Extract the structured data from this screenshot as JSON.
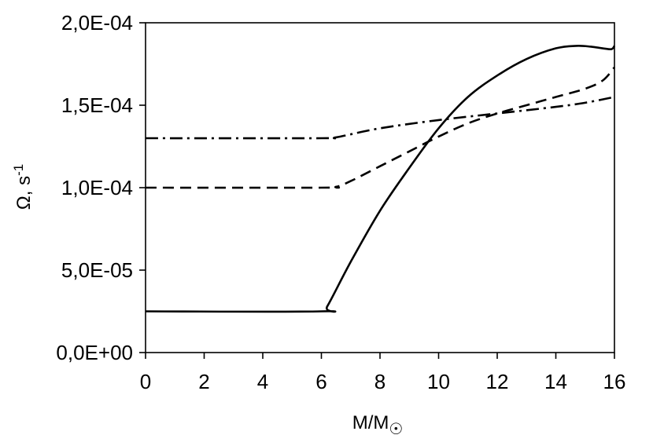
{
  "chart_data": {
    "type": "line",
    "xlabel_main": "M/M",
    "xlabel_sub": "☉",
    "ylabel_main": "Ω, s",
    "ylabel_sup": "-1",
    "xlim": [
      0,
      16
    ],
    "ylim": [
      0,
      0.0002
    ],
    "x_ticks": [
      0,
      2,
      4,
      6,
      8,
      10,
      12,
      14,
      16
    ],
    "x_tick_labels": [
      "0",
      "2",
      "4",
      "6",
      "8",
      "10",
      "12",
      "14",
      "16"
    ],
    "y_ticks": [
      0,
      5e-05,
      0.0001,
      0.00015,
      0.0002
    ],
    "y_tick_labels": [
      "0,0E+00",
      "5,0E-05",
      "1,0E-04",
      "1,5E-04",
      "2,0E-04"
    ],
    "grid": false,
    "legend": "none",
    "line_color": "#000000",
    "series": [
      {
        "style": "solid",
        "x": [
          0,
          6,
          6.2,
          7,
          8,
          9,
          10,
          11,
          12,
          13,
          14,
          14.7,
          15.2,
          15.6,
          15.9,
          16
        ],
        "y": [
          2.5e-05,
          2.5e-05,
          2.8e-05,
          5.5e-05,
          8.6e-05,
          0.000112,
          0.000136,
          0.000155,
          0.000168,
          0.000178,
          0.0001845,
          0.000186,
          0.0001855,
          0.0001845,
          0.000184,
          0.000186
        ]
      },
      {
        "style": "dashed",
        "x": [
          0,
          6,
          6.5,
          7,
          8,
          9,
          10,
          11,
          12,
          13,
          14,
          15,
          15.6,
          16
        ],
        "y": [
          0.0001,
          0.0001,
          0.0001005,
          0.000104,
          0.000113,
          0.000122,
          0.000131,
          0.000139,
          0.000145,
          0.00015,
          0.000155,
          0.00016,
          0.000165,
          0.000173
        ]
      },
      {
        "style": "dash-dot",
        "x": [
          0,
          6,
          6.5,
          8,
          10,
          12,
          14,
          15,
          16
        ],
        "y": [
          0.00013,
          0.00013,
          0.0001305,
          0.000136,
          0.000141,
          0.000145,
          0.000149,
          0.0001515,
          0.000155
        ]
      }
    ]
  }
}
